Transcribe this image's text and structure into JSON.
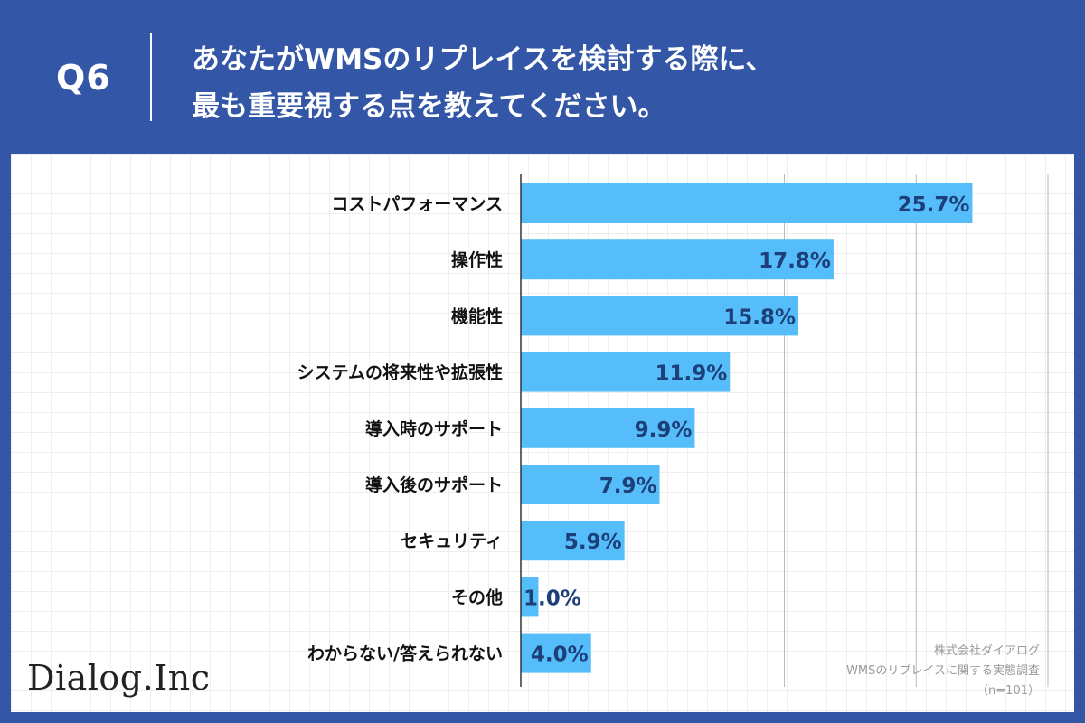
{
  "header": {
    "question_number": "Q6",
    "question_text": "あなたがWMSのリプレイスを検討する際に、\n最も重要視する点を教えてください。"
  },
  "colors": {
    "background": "#3357a6",
    "bar": "#56bdfb",
    "axis_line": "#333333",
    "gridline": "#bbbbbb",
    "value_label": "#1d3f7a",
    "category_label": "#111111"
  },
  "chart_data": {
    "type": "bar",
    "orientation": "horizontal",
    "categories": [
      "コストパフォーマンス",
      "操作性",
      "機能性",
      "システムの将来性や拡張性",
      "導入時のサポート",
      "導入後のサポート",
      "セキュリティ",
      "その他",
      "わからない/答えられない"
    ],
    "values": [
      25.7,
      17.8,
      15.8,
      11.9,
      9.9,
      7.9,
      5.9,
      1.0,
      4.0
    ],
    "value_labels": [
      "25.7%",
      "17.8%",
      "15.8%",
      "11.9%",
      "9.9%",
      "7.9%",
      "5.9%",
      "1.0%",
      "4.0%"
    ],
    "unit": "%",
    "xlim": [
      0,
      30
    ],
    "gridlines_at": [
      15,
      22.5,
      30
    ],
    "title": "あなたがWMSのリプレイスを検討する際に、最も重要視する点を教えてください。",
    "xlabel": "",
    "ylabel": ""
  },
  "footer": {
    "logo_text": "Dialog.Inc",
    "source_company": "株式会社ダイアログ",
    "source_survey": "WMSのリプレイスに関する実態調査",
    "sample_size": "（n=101）"
  }
}
